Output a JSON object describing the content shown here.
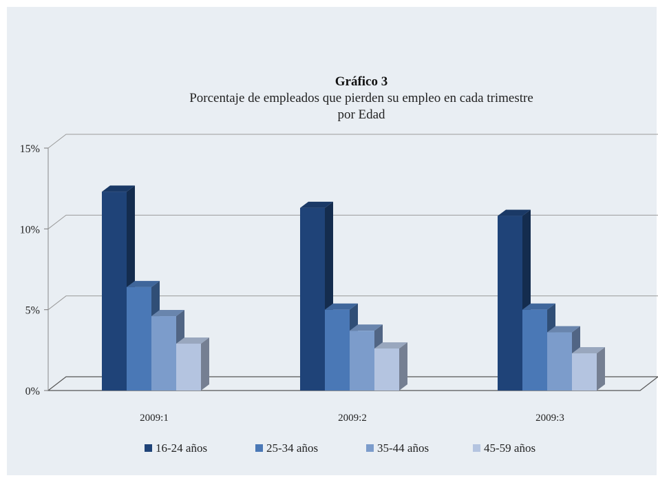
{
  "chart_data": {
    "type": "bar",
    "title": "Gráfico 3",
    "subtitle_lines": [
      "Porcentaje de empleados que pierden su empleo en cada trimestre",
      "por Edad"
    ],
    "categories": [
      "2009:1",
      "2009:2",
      "2009:3"
    ],
    "series": [
      {
        "name": "16-24 años",
        "color": "#1f4378",
        "values": [
          12.3,
          11.3,
          10.8
        ]
      },
      {
        "name": "25-34 años",
        "color": "#4a78b6",
        "values": [
          6.4,
          5.0,
          5.0
        ]
      },
      {
        "name": "35-44 años",
        "color": "#7c9ccb",
        "values": [
          4.6,
          3.7,
          3.6
        ]
      },
      {
        "name": "45-59 años",
        "color": "#b4c4e0",
        "values": [
          2.9,
          2.6,
          2.3
        ]
      }
    ],
    "yticks": [
      "0%",
      "5%",
      "10%",
      "15%"
    ],
    "ytick_values": [
      0,
      5,
      10,
      15
    ],
    "ylim": [
      0,
      15
    ],
    "grid": true,
    "legend_position": "bottom",
    "style": "3d-column"
  }
}
